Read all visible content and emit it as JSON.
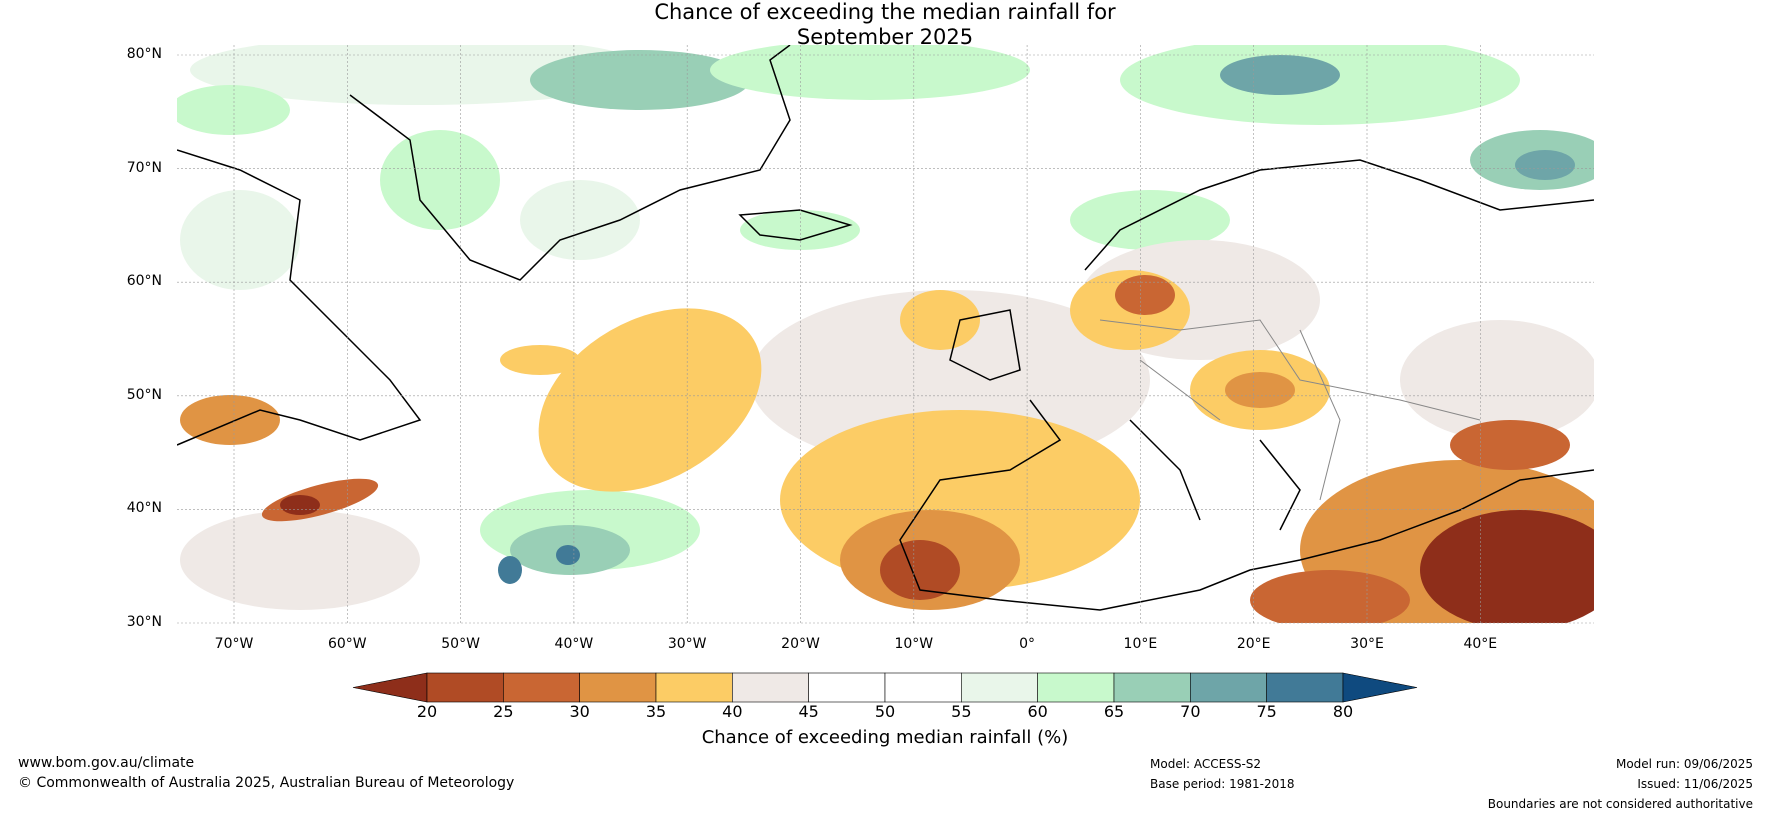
{
  "title_line1": "Chance of exceeding the median rainfall for",
  "title_line2": "September 2025",
  "map": {
    "lat_labels": [
      "80°N",
      "70°N",
      "60°N",
      "50°N",
      "40°N",
      "30°N"
    ],
    "lon_labels": [
      "70°W",
      "60°W",
      "50°W",
      "40°W",
      "30°W",
      "20°W",
      "10°W",
      "0°",
      "10°E",
      "20°E",
      "30°E",
      "40°E"
    ],
    "ocean_color": "#ffffff",
    "gridline_color": "#999999"
  },
  "colorbar": {
    "label": "Chance of exceeding median rainfall (%)",
    "ticks": [
      "20",
      "25",
      "30",
      "35",
      "40",
      "45",
      "50",
      "55",
      "60",
      "65",
      "70",
      "75",
      "80"
    ],
    "colors": [
      "#8e2e1a",
      "#b04b25",
      "#c96633",
      "#e09444",
      "#fccc65",
      "#efe9e6",
      "#ffffff",
      "#ffffff",
      "#e9f6ea",
      "#c8f9cc",
      "#99cfb6",
      "#6ea5a8",
      "#417a97",
      "#0f4a7f"
    ]
  },
  "footer": {
    "url": "www.bom.gov.au/climate",
    "copyright": "© Commonwealth of Australia 2025, Australian Bureau of Meteorology",
    "model": "Model: ACCESS-S2",
    "base_period": "Base period: 1981-2018",
    "model_run": "Model run: 09/06/2025",
    "issued": "Issued: 11/06/2025",
    "disclaimer": "Boundaries are not considered authoritative"
  }
}
